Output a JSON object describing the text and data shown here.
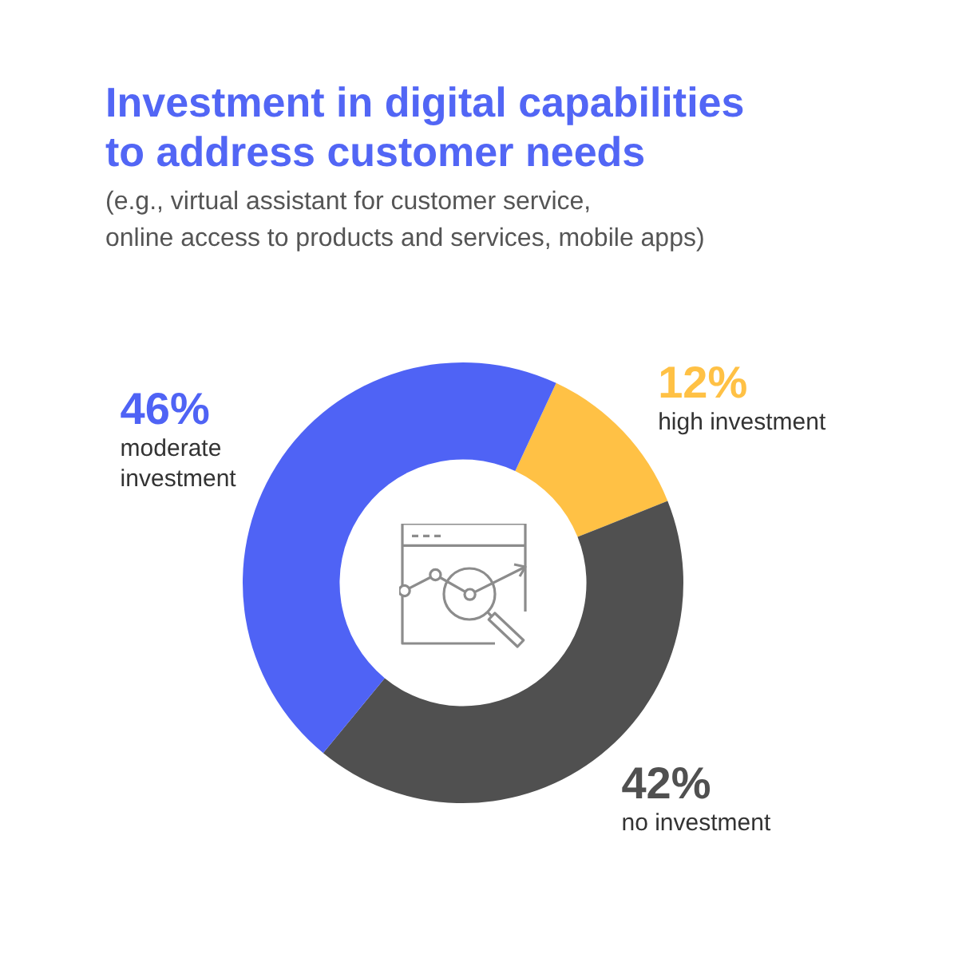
{
  "chart_data": {
    "type": "donut",
    "title": "Investment in digital capabilities\nto address customer needs",
    "subtitle": "(e.g., virtual assistant for customer service,\nonline access to products and services, mobile apps)",
    "categories": [
      "high investment",
      "no investment",
      "moderate investment"
    ],
    "values": [
      12,
      42,
      46
    ],
    "value_labels": [
      "12%",
      "42%",
      "46%"
    ],
    "colors": [
      "#ffc145",
      "#505050",
      "#4f63f5"
    ]
  }
}
